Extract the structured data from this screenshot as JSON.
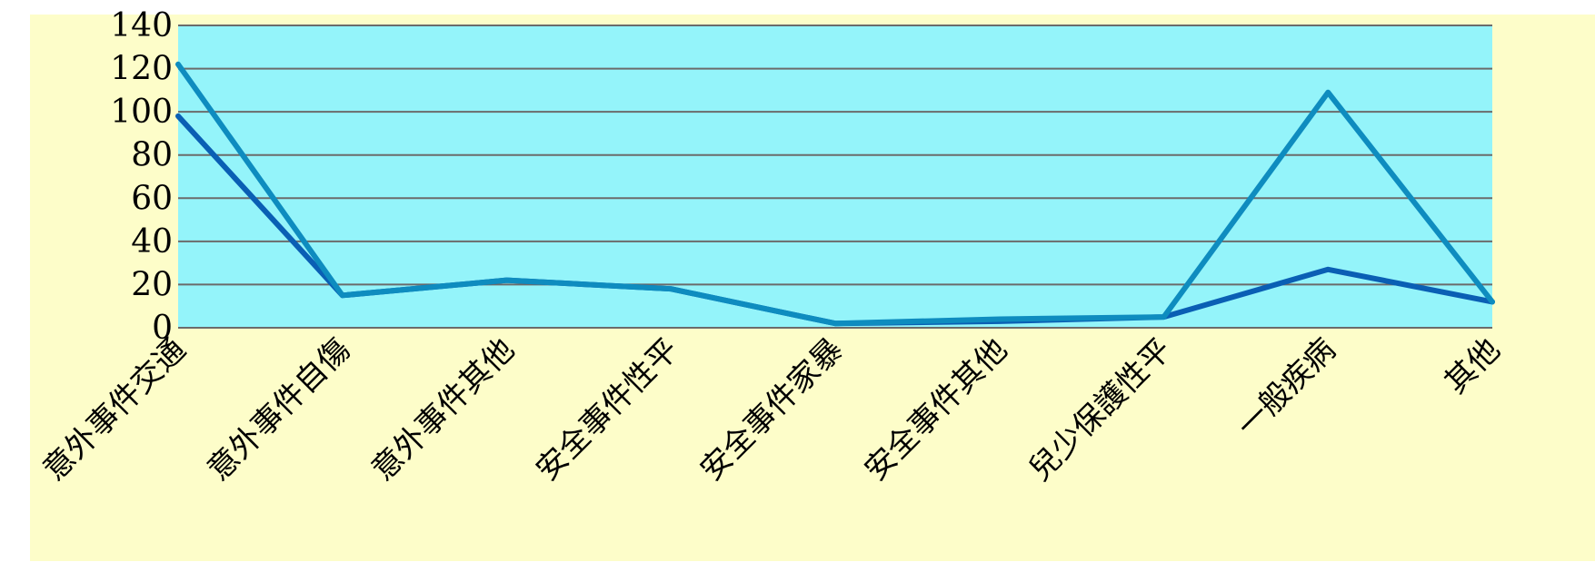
{
  "chart_data": {
    "type": "line",
    "title": "",
    "xlabel": "",
    "ylabel": "",
    "ylim": [
      0,
      140
    ],
    "yticks": [
      0,
      20,
      40,
      60,
      80,
      100,
      120,
      140
    ],
    "grid": true,
    "legend": "none",
    "categories": [
      "意外事件交通",
      "意外事件自傷",
      "意外事件其他",
      "安全事件性平",
      "安全事件家暴",
      "安全事件其他",
      "兒少保護性平",
      "一般疾病",
      "其他"
    ],
    "series": [
      {
        "values": [
          98,
          15,
          22,
          18,
          2,
          3,
          5,
          27,
          12
        ],
        "color": "#0a5fb4"
      },
      {
        "values": [
          122,
          15,
          22,
          18,
          2,
          4,
          5,
          109,
          12
        ],
        "color": "#0e8cbf"
      }
    ],
    "colors": {
      "page_background": "#fdfdc9",
      "plot_background": "#94f4fa",
      "gridline": "#6b6b6b"
    }
  }
}
